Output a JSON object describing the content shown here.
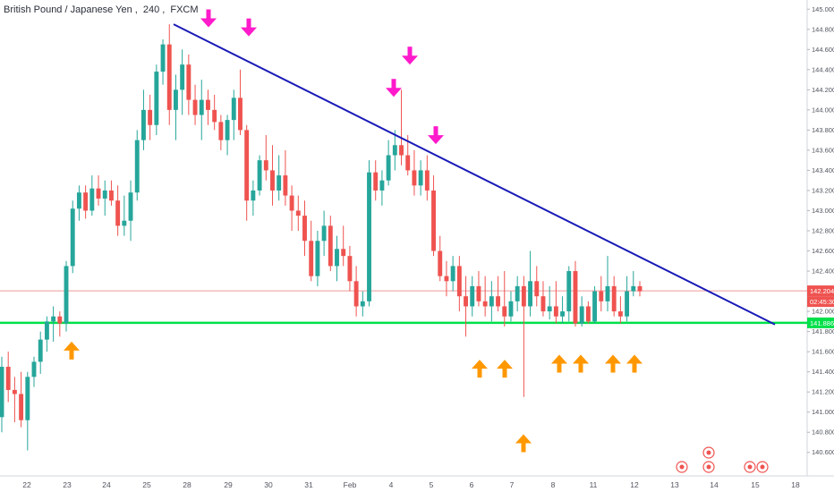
{
  "header": {
    "symbol": "British Pound / Japanese Yen",
    "interval": "240",
    "source": "FXCM"
  },
  "price_badge": {
    "price": "142.204",
    "countdown": "02:45:30"
  },
  "support_badge": "141.886",
  "colors": {
    "up": "#26a69a",
    "down": "#ef5350",
    "trendline": "#1a1ab8",
    "support": "#00e04a",
    "price_line": "#ef9a9a",
    "arrow_top": "#ff1acb",
    "arrow_bottom": "#ff9800"
  },
  "chart_data": {
    "type": "candlestick",
    "x_ticks": [
      "22",
      "23",
      "24",
      "25",
      "28",
      "29",
      "30",
      "31",
      "Feb",
      "4",
      "5",
      "6",
      "7",
      "8",
      "11",
      "12",
      "13",
      "14",
      "15",
      "18"
    ],
    "y_ticks": [
      "145.000",
      "144.800",
      "144.600",
      "144.400",
      "144.200",
      "144.000",
      "143.800",
      "143.600",
      "143.400",
      "143.200",
      "143.000",
      "142.800",
      "142.600",
      "142.400",
      "142.200",
      "142.000",
      "141.800",
      "141.600",
      "141.400",
      "141.200",
      "141.000",
      "140.800",
      "140.600"
    ],
    "y_range": [
      140.58,
      145.02
    ],
    "current_price": 142.204,
    "support_level": 141.886,
    "trendline": {
      "start": [
        "25",
        144.85
      ],
      "end": [
        "15",
        141.87
      ]
    },
    "markers_down": [
      [
        "28",
        144.82
      ],
      [
        "29",
        144.73
      ],
      [
        "4",
        144.13
      ],
      [
        "4",
        144.45
      ],
      [
        "5",
        143.66
      ]
    ],
    "markers_up": [
      [
        "23",
        141.7
      ],
      [
        "6",
        141.52
      ],
      [
        "6",
        141.52
      ],
      [
        "8",
        141.57
      ],
      [
        "8",
        141.57
      ],
      [
        "11",
        141.57
      ],
      [
        "11",
        141.57
      ],
      [
        "7",
        140.78
      ]
    ],
    "candles": [
      [
        140.95,
        141.55,
        140.8,
        141.45
      ],
      [
        141.45,
        141.6,
        141.1,
        141.22
      ],
      [
        141.22,
        141.35,
        140.9,
        141.18
      ],
      [
        141.18,
        141.4,
        140.85,
        140.92
      ],
      [
        140.92,
        141.4,
        140.62,
        141.35
      ],
      [
        141.35,
        141.55,
        141.25,
        141.5
      ],
      [
        141.5,
        141.8,
        141.38,
        141.72
      ],
      [
        141.72,
        141.95,
        141.6,
        141.9
      ],
      [
        141.9,
        142.05,
        141.7,
        141.95
      ],
      [
        141.95,
        142.0,
        141.75,
        141.88
      ],
      [
        141.88,
        142.5,
        141.8,
        142.45
      ],
      [
        142.45,
        143.1,
        142.38,
        143.02
      ],
      [
        143.02,
        143.25,
        142.9,
        143.18
      ],
      [
        143.18,
        143.25,
        142.92,
        143.0
      ],
      [
        143.0,
        143.35,
        142.95,
        143.22
      ],
      [
        143.22,
        143.35,
        143.05,
        143.12
      ],
      [
        143.12,
        143.3,
        142.95,
        143.2
      ],
      [
        143.2,
        143.3,
        143.05,
        143.1
      ],
      [
        143.1,
        143.25,
        142.75,
        142.85
      ],
      [
        142.85,
        143.15,
        142.75,
        142.9
      ],
      [
        142.9,
        143.3,
        142.7,
        143.18
      ],
      [
        143.18,
        143.8,
        143.1,
        143.7
      ],
      [
        143.7,
        144.2,
        143.6,
        144.0
      ],
      [
        144.0,
        144.15,
        143.7,
        143.85
      ],
      [
        143.85,
        144.45,
        143.75,
        144.38
      ],
      [
        144.38,
        144.7,
        144.25,
        144.65
      ],
      [
        144.65,
        144.85,
        143.85,
        144.0
      ],
      [
        144.0,
        144.35,
        143.7,
        144.2
      ],
      [
        144.2,
        144.6,
        143.95,
        144.45
      ],
      [
        144.45,
        144.55,
        143.95,
        144.1
      ],
      [
        144.1,
        144.25,
        143.85,
        143.95
      ],
      [
        143.95,
        144.3,
        143.7,
        144.1
      ],
      [
        144.1,
        144.2,
        143.85,
        144.0
      ],
      [
        144.0,
        144.15,
        143.8,
        143.88
      ],
      [
        143.88,
        143.95,
        143.6,
        143.7
      ],
      [
        143.7,
        143.95,
        143.55,
        143.9
      ],
      [
        143.9,
        144.2,
        143.7,
        144.12
      ],
      [
        144.12,
        144.4,
        143.75,
        143.8
      ],
      [
        143.8,
        143.85,
        142.9,
        143.1
      ],
      [
        143.1,
        143.3,
        142.95,
        143.2
      ],
      [
        143.2,
        143.55,
        143.15,
        143.5
      ],
      [
        143.5,
        143.75,
        143.3,
        143.4
      ],
      [
        143.4,
        143.65,
        143.05,
        143.2
      ],
      [
        143.2,
        143.55,
        143.1,
        143.35
      ],
      [
        143.35,
        143.6,
        143.05,
        143.15
      ],
      [
        143.15,
        143.25,
        142.8,
        143.0
      ],
      [
        143.0,
        143.15,
        142.8,
        142.95
      ],
      [
        142.95,
        143.1,
        142.55,
        142.7
      ],
      [
        142.7,
        142.9,
        142.3,
        142.35
      ],
      [
        142.35,
        142.8,
        142.25,
        142.7
      ],
      [
        142.7,
        143.0,
        142.55,
        142.85
      ],
      [
        142.85,
        142.95,
        142.4,
        142.45
      ],
      [
        142.45,
        142.75,
        142.3,
        142.62
      ],
      [
        142.62,
        142.85,
        142.45,
        142.55
      ],
      [
        142.55,
        142.65,
        142.2,
        142.3
      ],
      [
        142.3,
        142.45,
        141.95,
        142.05
      ],
      [
        142.05,
        142.2,
        141.95,
        142.1
      ],
      [
        142.1,
        143.5,
        142.05,
        143.38
      ],
      [
        143.38,
        143.5,
        143.1,
        143.2
      ],
      [
        143.2,
        143.4,
        143.05,
        143.3
      ],
      [
        143.3,
        143.7,
        143.25,
        143.55
      ],
      [
        143.55,
        143.8,
        143.4,
        143.65
      ],
      [
        143.65,
        144.2,
        143.45,
        143.55
      ],
      [
        143.55,
        143.75,
        143.35,
        143.4
      ],
      [
        143.4,
        143.6,
        143.15,
        143.25
      ],
      [
        143.25,
        143.5,
        143.15,
        143.4
      ],
      [
        143.4,
        143.55,
        143.1,
        143.2
      ],
      [
        143.2,
        143.35,
        142.55,
        142.6
      ],
      [
        142.6,
        142.75,
        142.3,
        142.35
      ],
      [
        142.35,
        142.5,
        142.15,
        142.3
      ],
      [
        142.3,
        142.55,
        142.2,
        142.45
      ],
      [
        142.45,
        142.55,
        142.0,
        142.15
      ],
      [
        142.15,
        142.35,
        141.75,
        142.05
      ],
      [
        142.05,
        142.35,
        141.95,
        142.25
      ],
      [
        142.25,
        142.4,
        142.05,
        142.1
      ],
      [
        142.1,
        142.35,
        141.95,
        142.05
      ],
      [
        142.05,
        142.3,
        141.9,
        142.15
      ],
      [
        142.15,
        142.35,
        142.0,
        142.05
      ],
      [
        142.05,
        142.4,
        141.85,
        141.95
      ],
      [
        141.95,
        142.2,
        141.9,
        142.1
      ],
      [
        142.1,
        142.35,
        142.0,
        142.25
      ],
      [
        142.25,
        142.35,
        141.15,
        142.05
      ],
      [
        142.05,
        142.6,
        141.95,
        142.3
      ],
      [
        142.3,
        142.45,
        142.05,
        142.15
      ],
      [
        142.15,
        142.3,
        141.95,
        142.0
      ],
      [
        142.0,
        142.25,
        141.92,
        142.05
      ],
      [
        142.05,
        142.3,
        141.88,
        141.95
      ],
      [
        141.95,
        142.15,
        141.88,
        142.0
      ],
      [
        142.0,
        142.45,
        141.9,
        142.4
      ],
      [
        142.4,
        142.5,
        141.85,
        141.88
      ],
      [
        141.88,
        142.15,
        141.85,
        142.05
      ],
      [
        142.05,
        142.1,
        141.88,
        141.9
      ],
      [
        141.9,
        142.25,
        141.88,
        142.2
      ],
      [
        142.2,
        142.35,
        142.0,
        142.1
      ],
      [
        142.1,
        142.55,
        142.0,
        142.25
      ],
      [
        142.25,
        142.35,
        141.95,
        142.0
      ],
      [
        142.0,
        142.15,
        141.88,
        141.95
      ],
      [
        141.95,
        142.35,
        141.9,
        142.2
      ],
      [
        142.2,
        142.4,
        142.15,
        142.25
      ],
      [
        142.25,
        142.3,
        142.15,
        142.2
      ]
    ]
  }
}
